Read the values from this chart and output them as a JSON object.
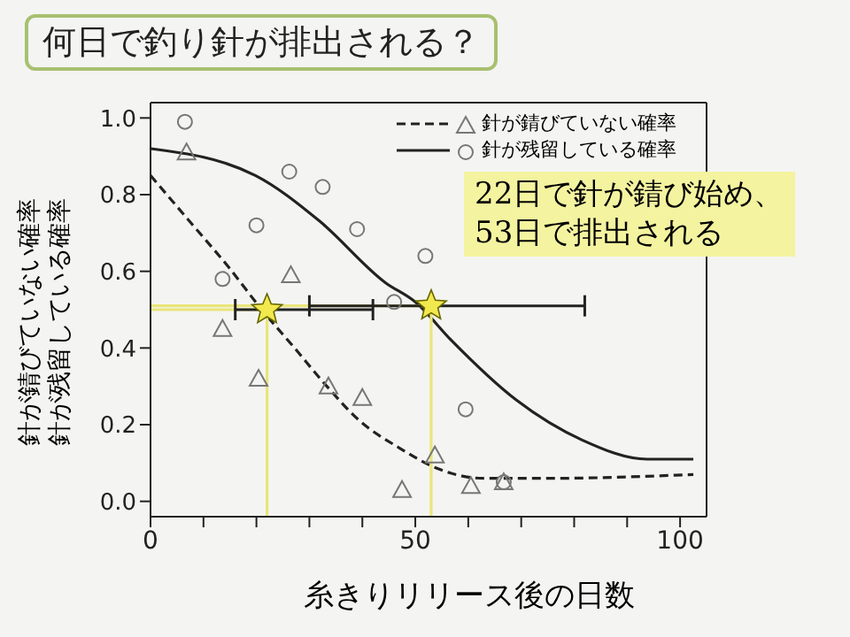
{
  "chart_data": {
    "type": "scatter",
    "title": "何日で釣り針が排出される？",
    "xlabel": "糸きりリリース後の日数",
    "ylabel": "針が錆びていない確率",
    "annotations": [
      "22日で針が錆び始め、\n53日で排出される",
      "針が残留している確率"
    ],
    "xlim": [
      0,
      105
    ],
    "xticks": [
      0,
      {
        "value": 10,
        "label": null
      },
      {
        "value": 20,
        "label": null
      },
      {
        "value": 30,
        "label": null
      },
      {
        "value": 40,
        "label": null
      },
      50,
      {
        "value": 60,
        "label": null
      },
      {
        "value": 70,
        "label": null
      },
      {
        "value": 80,
        "label": null
      },
      {
        "value": 90,
        "label": null
      },
      100
    ],
    "ylim": [
      -0.04,
      1.04
    ],
    "yticks": [
      {
        "value": 0,
        "label": "0.0"
      },
      {
        "value": 0.2,
        "label": "0.2"
      },
      {
        "value": 0.4,
        "label": "0.4"
      },
      {
        "value": 0.6,
        "label": "0.6"
      },
      {
        "value": 0.8,
        "label": "0.8"
      },
      {
        "value": 1,
        "label": "1.0"
      }
    ],
    "grid": false,
    "legend": "top right",
    "series": [
      {
        "name": "針が錆びていない確率",
        "marker": "triangle",
        "color": "#777777",
        "x": [
          6.8,
          13.6,
          20.4,
          26.5,
          33.6,
          40,
          47.5,
          53.7,
          60.5,
          66.7
        ],
        "values": [
          0.91,
          0.45,
          0.32,
          0.59,
          0.3,
          0.27,
          0.03,
          0.12,
          0.04,
          0.05
        ]
      },
      {
        "name": "針が残留している確率",
        "marker": "circle",
        "color": "#777777",
        "x": [
          6.5,
          13.6,
          20,
          26.2,
          32.5,
          39,
          46,
          51.9,
          59.5,
          66.7
        ],
        "values": [
          0.99,
          0.58,
          0.72,
          0.86,
          0.82,
          0.71,
          0.52,
          0.64,
          0.24,
          0.05
        ]
      },
      {
        "type": "line",
        "line_style": "dashed",
        "marker": "none",
        "color": "#222222",
        "x": [
          0,
          7.4,
          14.8,
          21,
          27.2,
          33.3,
          39.5,
          46.9,
          54.3,
          63,
          75,
          102.5
        ],
        "values": [
          0.85,
          0.73,
          0.61,
          0.5,
          0.4,
          0.3,
          0.21,
          0.14,
          0.085,
          0.06,
          0.06,
          0.07
        ]
      },
      {
        "type": "line",
        "line_style": "solid",
        "marker": "none",
        "color": "#222222",
        "x": [
          0,
          19.8,
          32,
          44.4,
          50,
          56.8,
          69,
          81.5,
          93.8,
          102.5
        ],
        "values": [
          0.92,
          0.85,
          0.73,
          0.57,
          0.52,
          0.42,
          0.265,
          0.16,
          0.11,
          0.11
        ]
      },
      {
        "type": "line",
        "line_style": "solid",
        "marker": "none",
        "color": "#e9e57a",
        "x": [
          0,
          22,
          22
        ],
        "values": [
          0.5,
          0.5,
          -0.04
        ]
      },
      {
        "type": "line",
        "line_style": "solid",
        "marker": "none",
        "color": "#e9e57a",
        "x": [
          0,
          53,
          53
        ],
        "values": [
          0.51,
          0.51,
          -0.04
        ]
      },
      {
        "marker": "star",
        "color": "#f2e94e",
        "x": [
          22,
          53
        ],
        "values": [
          0.5,
          0.51
        ],
        "xerrors": [
          [
            16,
            42
          ],
          [
            30,
            82
          ]
        ]
      }
    ]
  }
}
